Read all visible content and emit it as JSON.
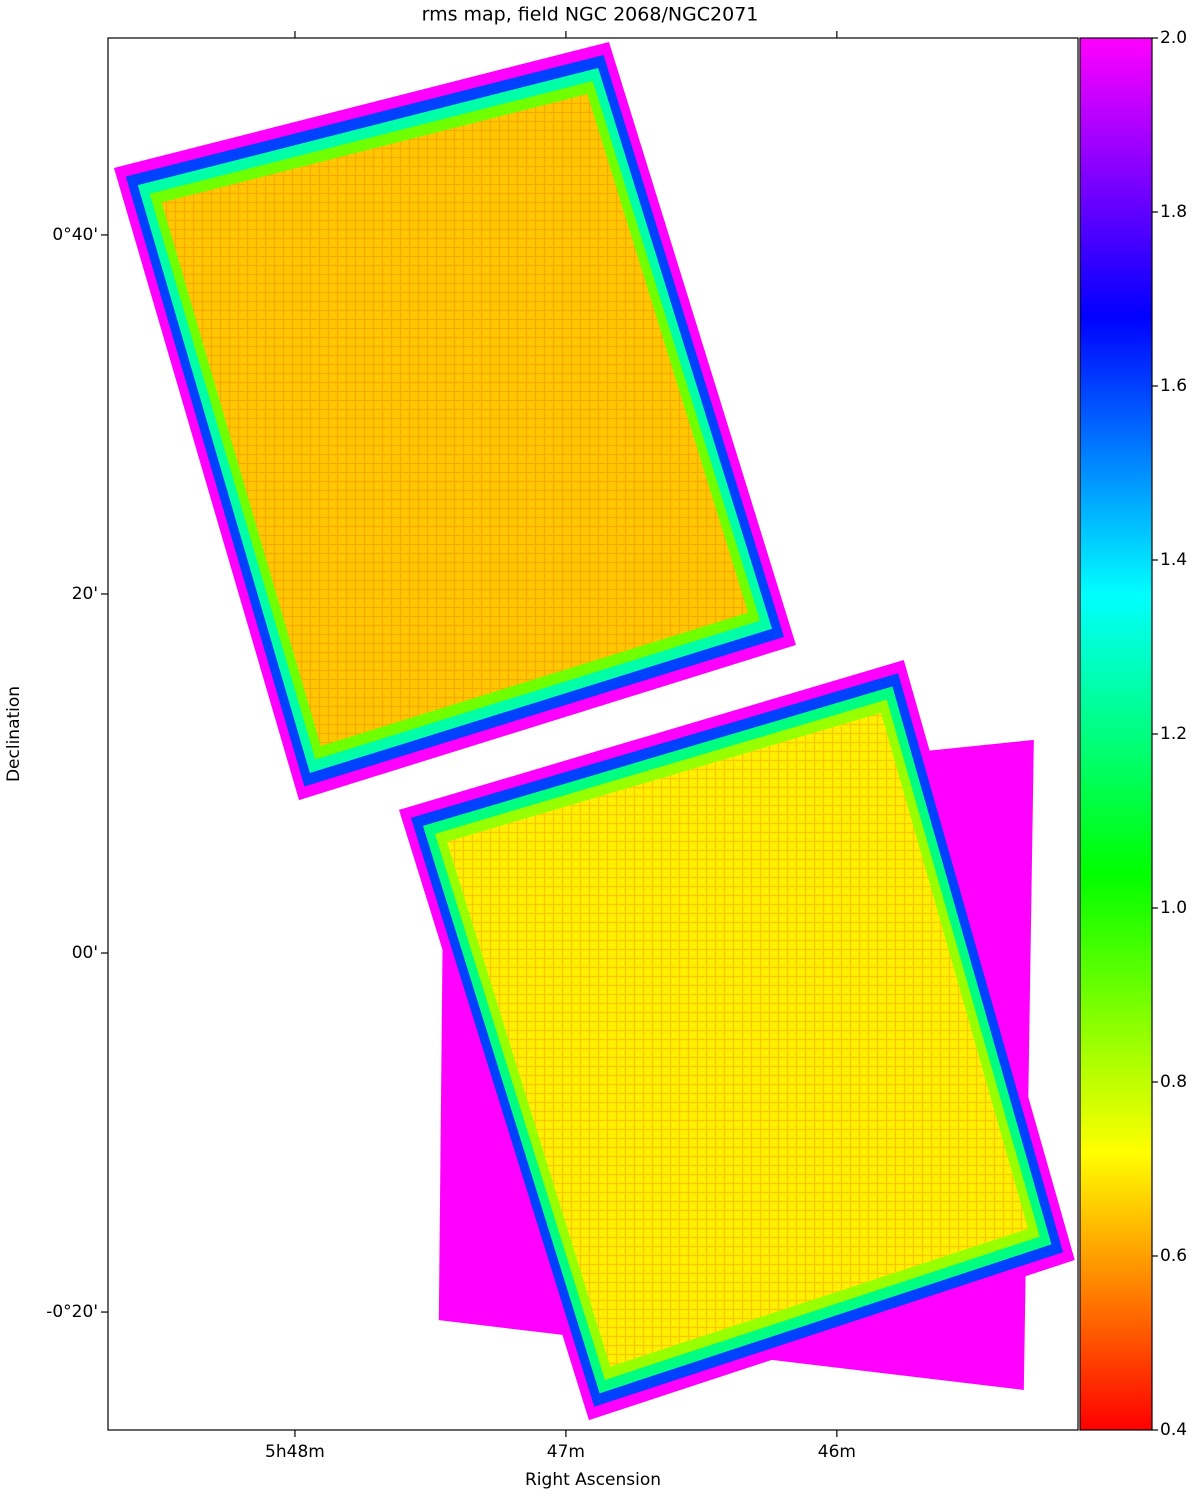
{
  "chart_data": {
    "type": "image",
    "title": "rms map, field NGC 2068/NGC2071",
    "xlabel": "Right Ascension",
    "ylabel": "Declination",
    "xlim": [
      348.69,
      345.11
    ],
    "ylim": [
      -26.57,
      50.97
    ],
    "xticks": [
      {
        "value": 348,
        "label": "5h48m"
      },
      {
        "value": 347,
        "label": "47m"
      },
      {
        "value": 346,
        "label": "46m"
      }
    ],
    "yticks": [
      {
        "value": 40,
        "label": "0°40'"
      },
      {
        "value": 20,
        "label": "20'"
      },
      {
        "value": 0,
        "label": "00'"
      },
      {
        "value": -20,
        "label": "-0°20'"
      }
    ],
    "colormap": "gist_rainbow",
    "clim": [
      0.4,
      2.0
    ],
    "cticks": [
      0.4,
      0.6,
      0.8,
      1.0,
      1.2,
      1.4,
      1.6,
      1.8,
      2.0
    ],
    "fields": [
      {
        "corners": [
          [
            347.45,
            8.52
          ],
          [
            345.273,
            11.87
          ],
          [
            345.31,
            -24.34
          ],
          [
            347.469,
            -20.45
          ]
        ],
        "levels": [
          2.0
        ]
      },
      {
        "corners": [
          [
            348.668,
            43.73
          ],
          [
            346.841,
            50.75
          ],
          [
            346.151,
            17.16
          ],
          [
            347.985,
            8.52
          ]
        ],
        "levels": [
          2.0,
          1.6,
          1.25,
          0.9,
          0.65
        ]
      },
      {
        "corners": [
          [
            347.616,
            7.97
          ],
          [
            345.753,
            16.32
          ],
          [
            345.122,
            -17.1
          ],
          [
            346.915,
            -26.02
          ]
        ],
        "levels": [
          2.0,
          1.6,
          1.2,
          0.85,
          0.7
        ]
      }
    ]
  }
}
